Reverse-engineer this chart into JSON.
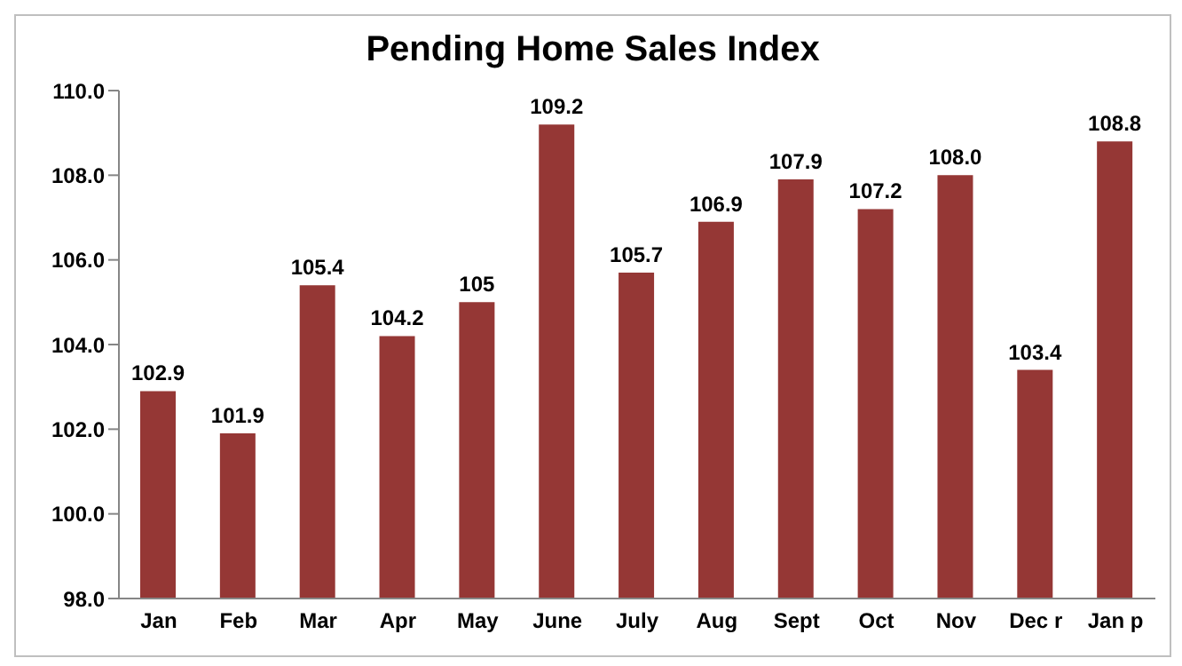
{
  "chart_data": {
    "type": "bar",
    "title": "Pending Home Sales Index",
    "categories": [
      "Jan",
      "Feb",
      "Mar",
      "Apr",
      "May",
      "June",
      "July",
      "Aug",
      "Sept",
      "Oct",
      "Nov",
      "Dec r",
      "Jan  p"
    ],
    "values": [
      102.9,
      101.9,
      105.4,
      104.2,
      105,
      109.2,
      105.7,
      106.9,
      107.9,
      107.2,
      108.0,
      103.4,
      108.8
    ],
    "value_labels": [
      "102.9",
      "101.9",
      "105.4",
      "104.2",
      "105",
      "109.2",
      "105.7",
      "106.9",
      "107.9",
      "107.2",
      "108.0",
      "103.4",
      "108.8"
    ],
    "color": "#953735",
    "ylim": [
      98,
      110
    ],
    "yticks": [
      {
        "value": 98,
        "label": "98.0"
      },
      {
        "value": 100,
        "label": "100.0"
      },
      {
        "value": 102,
        "label": "102.0"
      },
      {
        "value": 104,
        "label": "104.0"
      },
      {
        "value": 106,
        "label": "106.0"
      },
      {
        "value": 108,
        "label": "108.0"
      },
      {
        "value": 110,
        "label": "110.0"
      }
    ],
    "grid": false,
    "legend": false
  }
}
